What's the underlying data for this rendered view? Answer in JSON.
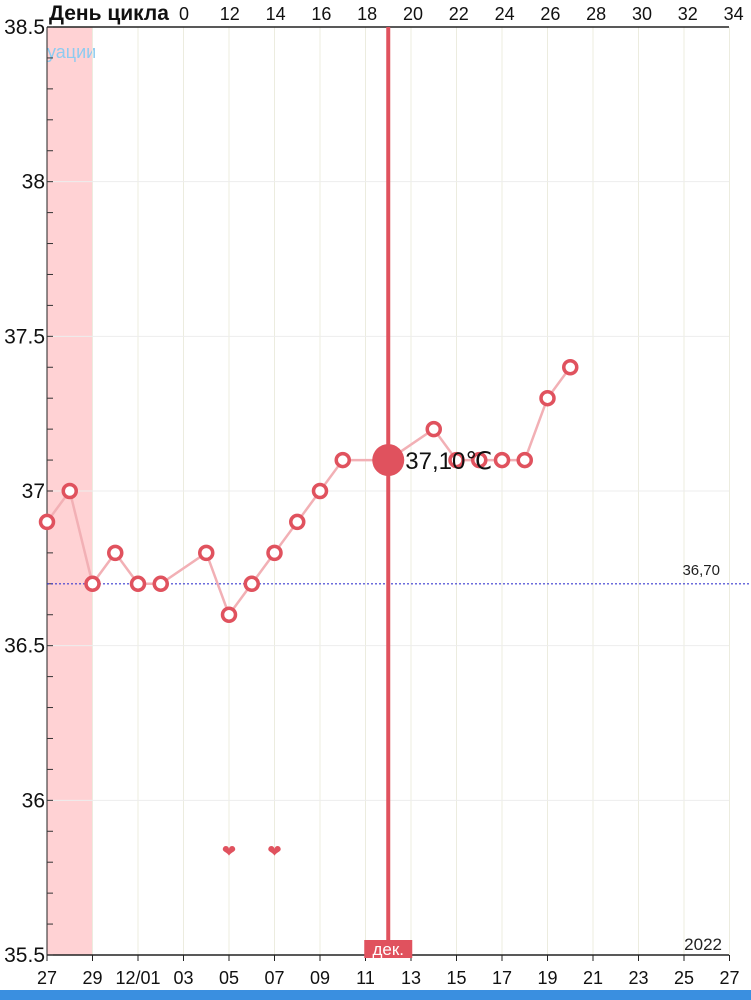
{
  "chart_data": {
    "type": "line",
    "top_axis_label": "День цикла",
    "top_ticks": [
      "0",
      "12",
      "14",
      "16",
      "18",
      "20",
      "22",
      "24",
      "26",
      "28",
      "30",
      "32",
      "34"
    ],
    "bottom_ticks": [
      "27",
      "29",
      "12/01",
      "03",
      "05",
      "07",
      "09",
      "11",
      "13",
      "15",
      "17",
      "19",
      "21",
      "23",
      "25",
      "27"
    ],
    "ylim": [
      35.5,
      38.5
    ],
    "y_ticks": [
      "38.5",
      "38",
      "37.5",
      "37",
      "36.5",
      "36",
      "35.5"
    ],
    "y_tick_values": [
      38.5,
      38,
      37.5,
      37,
      36.5,
      36,
      35.5
    ],
    "series": [
      {
        "values": [
          {
            "day": 0,
            "temp": 36.9
          },
          {
            "day": 1,
            "temp": 37.0
          },
          {
            "day": 2,
            "temp": 36.7
          },
          {
            "day": 3,
            "temp": 36.8
          },
          {
            "day": 4,
            "temp": 36.7
          },
          {
            "day": 5,
            "temp": 36.7
          },
          {
            "day": 7,
            "temp": 36.8
          },
          {
            "day": 8,
            "temp": 36.6
          },
          {
            "day": 9,
            "temp": 36.7
          },
          {
            "day": 10,
            "temp": 36.8
          },
          {
            "day": 11,
            "temp": 36.9
          },
          {
            "day": 12,
            "temp": 37.0
          },
          {
            "day": 13,
            "temp": 37.1
          },
          {
            "day": 15,
            "temp": 37.1
          },
          {
            "day": 17,
            "temp": 37.2
          },
          {
            "day": 18,
            "temp": 37.1
          },
          {
            "day": 19,
            "temp": 37.1
          },
          {
            "day": 20,
            "temp": 37.1
          },
          {
            "day": 21,
            "temp": 37.1
          },
          {
            "day": 22,
            "temp": 37.3
          },
          {
            "day": 23,
            "temp": 37.4
          }
        ]
      }
    ],
    "selected": {
      "day": 15,
      "temp": 37.1,
      "label": "37,10℃"
    },
    "coverline": {
      "value": 36.7,
      "label": "36,70"
    },
    "hearts_days": [
      8,
      10
    ],
    "period_days": [
      0,
      1
    ],
    "partial_label": "уации",
    "month_marker": "дек.",
    "year_label": "2022",
    "colors": {
      "accent": "#e0525e",
      "line": "#f2b0b5",
      "period": "#ffd2d4",
      "coverline": "#3b3bd0",
      "partial_text": "#8ecbf0",
      "bottom_bar": "#3a8fe0"
    }
  }
}
